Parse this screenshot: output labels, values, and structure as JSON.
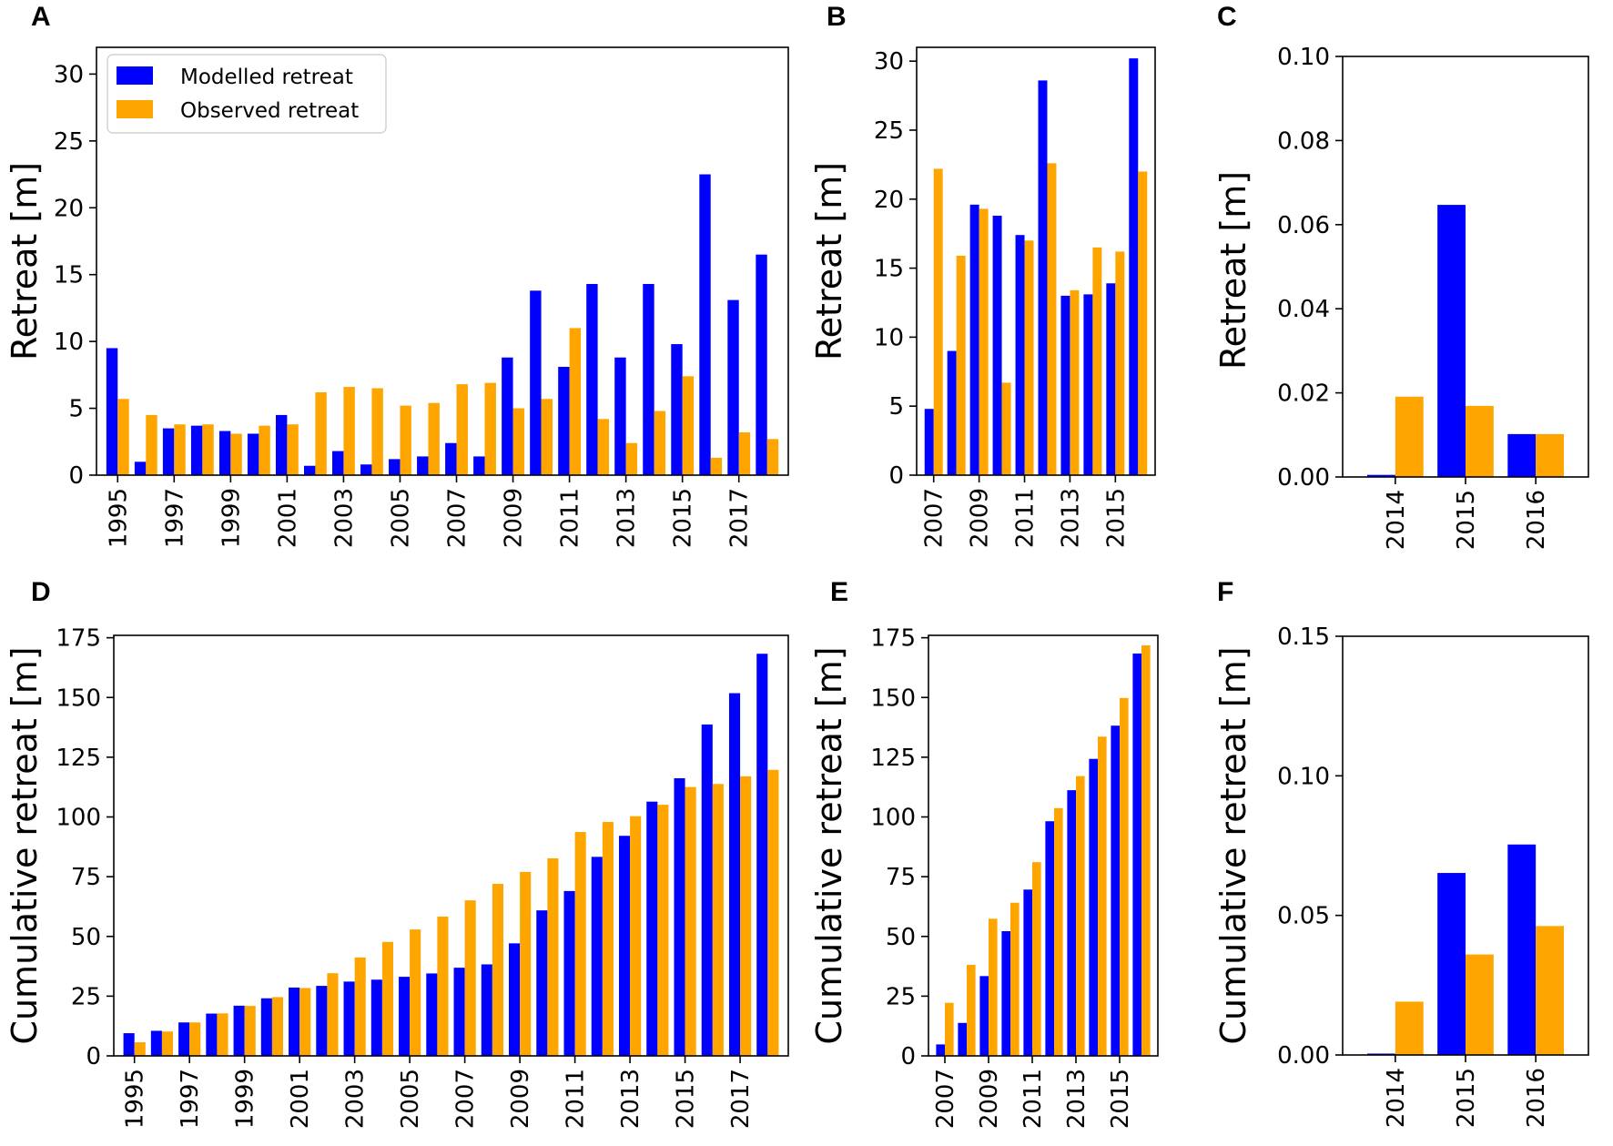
{
  "figure": {
    "legend": {
      "modelled": "Modelled retreat",
      "observed": "Observed retreat"
    },
    "colors": {
      "modelled": "#0000ff",
      "observed": "#ffa500"
    }
  },
  "chart_data": [
    {
      "id": "A",
      "letter": "A",
      "type": "bar",
      "title": "",
      "xlabel": "",
      "ylabel": "Retreat [m]",
      "ylim": [
        0,
        32
      ],
      "yticks": [
        0,
        5,
        10,
        15,
        20,
        25,
        30
      ],
      "ytick_labels": [
        "0",
        "5",
        "10",
        "15",
        "20",
        "25",
        "30"
      ],
      "legend_position": "top-left",
      "categories": [
        "1995",
        "1996",
        "1997",
        "1998",
        "1999",
        "2000",
        "2001",
        "2002",
        "2003",
        "2004",
        "2005",
        "2006",
        "2007",
        "2008",
        "2009",
        "2010",
        "2011",
        "2012",
        "2013",
        "2014",
        "2015",
        "2016",
        "2017",
        "2018"
      ],
      "xtick_labels": [
        "1995",
        "1997",
        "1999",
        "2001",
        "2003",
        "2005",
        "2007",
        "2009",
        "2011",
        "2013",
        "2015",
        "2017"
      ],
      "series": [
        {
          "name": "Modelled retreat",
          "values": [
            9.5,
            1.0,
            3.5,
            3.7,
            3.3,
            3.1,
            4.5,
            0.7,
            1.8,
            0.8,
            1.2,
            1.4,
            2.4,
            1.4,
            8.8,
            13.8,
            8.1,
            14.3,
            8.8,
            14.3,
            9.8,
            22.5,
            13.1,
            16.5
          ]
        },
        {
          "name": "Observed retreat",
          "values": [
            5.7,
            4.5,
            3.8,
            3.8,
            3.1,
            3.7,
            3.8,
            6.2,
            6.6,
            6.5,
            5.2,
            5.4,
            6.8,
            6.9,
            5.0,
            5.7,
            11.0,
            4.2,
            2.4,
            4.8,
            7.4,
            1.3,
            3.2,
            2.7
          ]
        }
      ]
    },
    {
      "id": "B",
      "letter": "B",
      "type": "bar",
      "title": "",
      "xlabel": "",
      "ylabel": "Retreat [m]",
      "ylim": [
        0,
        31
      ],
      "yticks": [
        0,
        5,
        10,
        15,
        20,
        25,
        30
      ],
      "ytick_labels": [
        "0",
        "5",
        "10",
        "15",
        "20",
        "25",
        "30"
      ],
      "categories": [
        "2007",
        "2008",
        "2009",
        "2010",
        "2011",
        "2012",
        "2013",
        "2014",
        "2015",
        "2016"
      ],
      "xtick_labels": [
        "2007",
        "2009",
        "2011",
        "2013",
        "2015"
      ],
      "series": [
        {
          "name": "Modelled retreat",
          "values": [
            4.8,
            9.0,
            19.6,
            18.8,
            17.4,
            28.6,
            13.0,
            13.1,
            13.9,
            30.2
          ]
        },
        {
          "name": "Observed retreat",
          "values": [
            22.2,
            15.9,
            19.3,
            6.7,
            17.0,
            22.6,
            13.4,
            16.5,
            16.2,
            22.0
          ]
        }
      ]
    },
    {
      "id": "C",
      "letter": "C",
      "type": "bar",
      "title": "",
      "xlabel": "",
      "ylabel": "Retreat [m]",
      "ylim": [
        0,
        0.1
      ],
      "yticks": [
        0,
        0.02,
        0.04,
        0.06,
        0.08,
        0.1
      ],
      "ytick_labels": [
        "0.00",
        "0.02",
        "0.04",
        "0.06",
        "0.08",
        "0.10"
      ],
      "categories": [
        "2014",
        "2015",
        "2016"
      ],
      "xtick_labels": [
        "2014",
        "2015",
        "2016"
      ],
      "series": [
        {
          "name": "Modelled retreat",
          "values": [
            0.0005,
            0.0647,
            0.0102
          ]
        },
        {
          "name": "Observed retreat",
          "values": [
            0.0191,
            0.0169,
            0.0102
          ]
        }
      ]
    },
    {
      "id": "D",
      "letter": "D",
      "type": "bar",
      "title": "",
      "xlabel": "",
      "ylabel": "Cumulative retreat [m]",
      "ylim": [
        0,
        176
      ],
      "yticks": [
        0,
        25,
        50,
        75,
        100,
        125,
        150,
        175
      ],
      "ytick_labels": [
        "0",
        "25",
        "50",
        "75",
        "100",
        "125",
        "150",
        "175"
      ],
      "categories": [
        "1995",
        "1996",
        "1997",
        "1998",
        "1999",
        "2000",
        "2001",
        "2002",
        "2003",
        "2004",
        "2005",
        "2006",
        "2007",
        "2008",
        "2009",
        "2010",
        "2011",
        "2012",
        "2013",
        "2014",
        "2015",
        "2016",
        "2017",
        "2018"
      ],
      "xtick_labels": [
        "1995",
        "1997",
        "1999",
        "2001",
        "2003",
        "2005",
        "2007",
        "2009",
        "2011",
        "2013",
        "2015",
        "2017"
      ],
      "series": [
        {
          "name": "Modelled retreat",
          "values": [
            9.5,
            10.5,
            14.0,
            17.7,
            21.0,
            24.1,
            28.6,
            29.3,
            31.1,
            31.9,
            33.1,
            34.5,
            36.9,
            38.3,
            47.1,
            60.9,
            69.0,
            83.3,
            92.1,
            106.4,
            116.2,
            138.7,
            151.8,
            168.3
          ]
        },
        {
          "name": "Observed retreat",
          "values": [
            5.7,
            10.2,
            14.0,
            17.8,
            20.9,
            24.6,
            28.4,
            34.6,
            41.2,
            47.7,
            52.9,
            58.3,
            65.1,
            72.0,
            77.0,
            82.7,
            93.7,
            97.9,
            100.3,
            105.1,
            112.5,
            113.8,
            117.0,
            119.7
          ]
        }
      ]
    },
    {
      "id": "E",
      "letter": "E",
      "type": "bar",
      "title": "",
      "xlabel": "",
      "ylabel": "Cumulative retreat [m]",
      "ylim": [
        0,
        176
      ],
      "yticks": [
        0,
        25,
        50,
        75,
        100,
        125,
        150,
        175
      ],
      "ytick_labels": [
        "0",
        "25",
        "50",
        "75",
        "100",
        "125",
        "150",
        "175"
      ],
      "categories": [
        "2007",
        "2008",
        "2009",
        "2010",
        "2011",
        "2012",
        "2013",
        "2014",
        "2015",
        "2016"
      ],
      "xtick_labels": [
        "2007",
        "2009",
        "2011",
        "2013",
        "2015"
      ],
      "series": [
        {
          "name": "Modelled retreat",
          "values": [
            4.8,
            13.8,
            33.4,
            52.2,
            69.6,
            98.2,
            111.2,
            124.3,
            138.2,
            168.4
          ]
        },
        {
          "name": "Observed retreat",
          "values": [
            22.2,
            38.1,
            57.4,
            64.1,
            81.1,
            103.7,
            117.1,
            133.6,
            149.8,
            171.8
          ]
        }
      ]
    },
    {
      "id": "F",
      "letter": "F",
      "type": "bar",
      "title": "",
      "xlabel": "",
      "ylabel": "Cumulative retreat [m]",
      "ylim": [
        0,
        0.15
      ],
      "yticks": [
        0,
        0.05,
        0.1,
        0.15
      ],
      "ytick_labels": [
        "0.00",
        "0.05",
        "0.10",
        "0.15"
      ],
      "categories": [
        "2014",
        "2015",
        "2016"
      ],
      "xtick_labels": [
        "2014",
        "2015",
        "2016"
      ],
      "series": [
        {
          "name": "Modelled retreat",
          "values": [
            0.0005,
            0.0652,
            0.0754
          ]
        },
        {
          "name": "Observed retreat",
          "values": [
            0.0191,
            0.036,
            0.0462
          ]
        }
      ]
    }
  ]
}
